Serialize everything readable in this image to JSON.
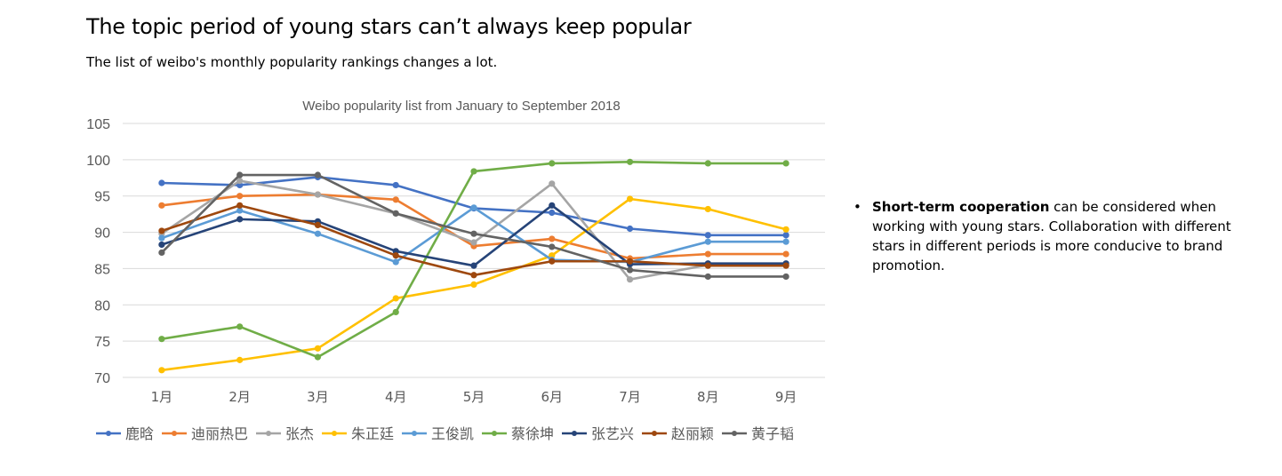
{
  "heading": {
    "title": "The topic period of young stars can’t always keep popular",
    "subtitle": "The list of weibo's monthly popularity rankings changes a lot."
  },
  "note": {
    "bullet": "•",
    "bold": "Short-term cooperation",
    "rest": " can be considered when working with young stars. Collaboration with different stars in different periods is more conducive to brand promotion."
  },
  "chart_data": {
    "type": "line",
    "title": "Weibo popularity list from January to September 2018",
    "xlabel": "",
    "ylabel": "",
    "categories": [
      "1月",
      "2月",
      "3月",
      "4月",
      "5月",
      "6月",
      "7月",
      "8月",
      "9月"
    ],
    "ylim": [
      70,
      105
    ],
    "yticks": [
      70,
      75,
      80,
      85,
      90,
      95,
      100,
      105
    ],
    "grid": true,
    "legend": "bottom",
    "series": [
      {
        "name": "鹿晗",
        "color": "#4472C4",
        "values": [
          96.8,
          96.5,
          97.6,
          96.5,
          93.3,
          92.7,
          90.5,
          89.6,
          89.6
        ]
      },
      {
        "name": "迪丽热巴",
        "color": "#ED7D31",
        "values": [
          93.7,
          95.0,
          95.2,
          94.5,
          88.1,
          89.1,
          86.4,
          87.0,
          87.0
        ]
      },
      {
        "name": "张杰",
        "color": "#A5A5A5",
        "values": [
          89.8,
          97.1,
          95.2,
          92.6,
          88.6,
          96.7,
          83.5,
          85.5,
          85.5
        ]
      },
      {
        "name": "朱正廷",
        "color": "#FFC000",
        "values": [
          71.0,
          72.4,
          74.0,
          80.9,
          82.8,
          86.8,
          94.6,
          93.2,
          90.4
        ]
      },
      {
        "name": "王俊凯",
        "color": "#5B9BD5",
        "values": [
          89.2,
          93.0,
          89.8,
          85.9,
          93.4,
          86.2,
          85.9,
          88.7,
          88.7
        ]
      },
      {
        "name": "蔡徐坤",
        "color": "#70AD47",
        "values": [
          75.3,
          77.0,
          72.8,
          79.0,
          98.4,
          99.5,
          99.7,
          99.5,
          99.5
        ]
      },
      {
        "name": "张艺兴",
        "color": "#264478",
        "values": [
          88.3,
          91.8,
          91.5,
          87.4,
          85.4,
          93.7,
          85.6,
          85.7,
          85.7
        ]
      },
      {
        "name": "赵丽颖",
        "color": "#9E480E",
        "values": [
          90.2,
          93.7,
          91.0,
          86.8,
          84.1,
          86.0,
          86.0,
          85.4,
          85.4
        ]
      },
      {
        "name": "黄子韬",
        "color": "#636363",
        "values": [
          87.2,
          97.9,
          97.9,
          92.6,
          89.8,
          88.0,
          84.8,
          83.9,
          83.9
        ]
      }
    ]
  }
}
